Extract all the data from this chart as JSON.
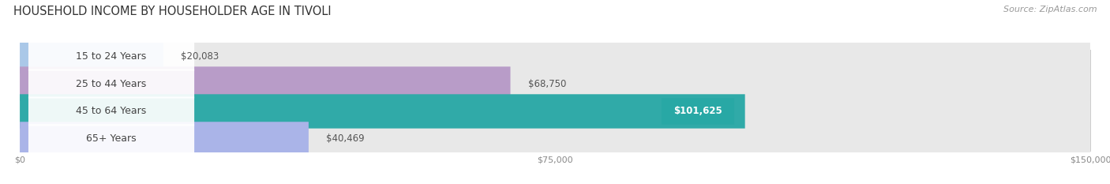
{
  "title": "HOUSEHOLD INCOME BY HOUSEHOLDER AGE IN TIVOLI",
  "source": "Source: ZipAtlas.com",
  "categories": [
    "15 to 24 Years",
    "25 to 44 Years",
    "45 to 64 Years",
    "65+ Years"
  ],
  "values": [
    20083,
    68750,
    101625,
    40469
  ],
  "bar_colors": [
    "#aac8e8",
    "#b89cc8",
    "#30aaa8",
    "#aab4e8"
  ],
  "track_color": "#e8e8e8",
  "value_labels": [
    "$20,083",
    "$68,750",
    "$101,625",
    "$40,469"
  ],
  "inside_label_idx": 2,
  "inside_label_color": "#28a8a5",
  "xmax": 150000,
  "xtick_labels": [
    "$0",
    "$75,000",
    "$150,000"
  ],
  "xtick_vals": [
    0,
    75000,
    150000
  ],
  "fig_width": 14.06,
  "fig_height": 2.33,
  "dpi": 100,
  "title_fontsize": 10.5,
  "source_fontsize": 8,
  "label_fontsize": 9,
  "value_fontsize": 8.5,
  "bg_color": "#ffffff"
}
